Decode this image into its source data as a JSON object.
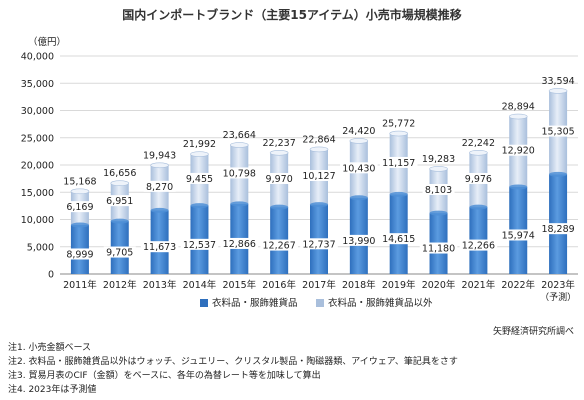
{
  "chart_data": {
    "type": "bar",
    "stacked": true,
    "title": "国内インポートブランド（主要15アイテム）小売市場規模推移",
    "ylabel": "（億円）",
    "ylim": [
      0,
      40000
    ],
    "yticks": [
      "0",
      "5,000",
      "10,000",
      "15,000",
      "20,000",
      "25,000",
      "30,000",
      "35,000",
      "40,000"
    ],
    "categories": [
      "2011年",
      "2012年",
      "2013年",
      "2014年",
      "2015年",
      "2016年",
      "2017年",
      "2018年",
      "2019年",
      "2020年",
      "2021年",
      "2022年",
      "2023年"
    ],
    "forecast_note": "（予測）",
    "series": [
      {
        "name": "衣料品・服飾雑貨品",
        "values": [
          8999,
          9705,
          11673,
          12537,
          12866,
          12267,
          12737,
          13990,
          14615,
          11180,
          12266,
          15974,
          18289
        ],
        "labels": [
          "8,999",
          "9,705",
          "11,673",
          "12,537",
          "12,866",
          "12,267",
          "12,737",
          "13,990",
          "14,615",
          "11,180",
          "12,266",
          "15,974",
          "18,289"
        ],
        "color": "#2e6fbd"
      },
      {
        "name": "衣料品・服飾雑貨品以外",
        "values": [
          6169,
          6951,
          8270,
          9455,
          10798,
          9970,
          10127,
          10430,
          11157,
          8103,
          9976,
          12920,
          15305
        ],
        "labels": [
          "6,169",
          "6,951",
          "8,270",
          "9,455",
          "10,798",
          "9,970",
          "10,127",
          "10,430",
          "11,157",
          "8,103",
          "9,976",
          "12,920",
          "15,305"
        ],
        "color": "#a9bfdc"
      }
    ],
    "totals": [
      15168,
      16656,
      19943,
      21992,
      23664,
      22237,
      22864,
      24420,
      25772,
      19283,
      22242,
      28894,
      33594
    ],
    "total_labels": [
      "15,168",
      "16,656",
      "19,943",
      "21,992",
      "23,664",
      "22,237",
      "22,864",
      "24,420",
      "25,772",
      "19,283",
      "22,242",
      "28,894",
      "33,594"
    ],
    "grid": true,
    "legend": "bottom-center"
  },
  "source": "矢野経済研究所調べ",
  "notes": [
    "注1. 小売金額ベース",
    "注2. 衣料品・服飾雑貨品以外はウォッチ、ジュエリー、クリスタル製品・陶磁器類、アイウェア、筆記具をさす",
    "注3. 貿易月表のCIF（金額）をベースに、各年の為替レート等を加味して算出",
    "注4. 2023年は予測値"
  ]
}
